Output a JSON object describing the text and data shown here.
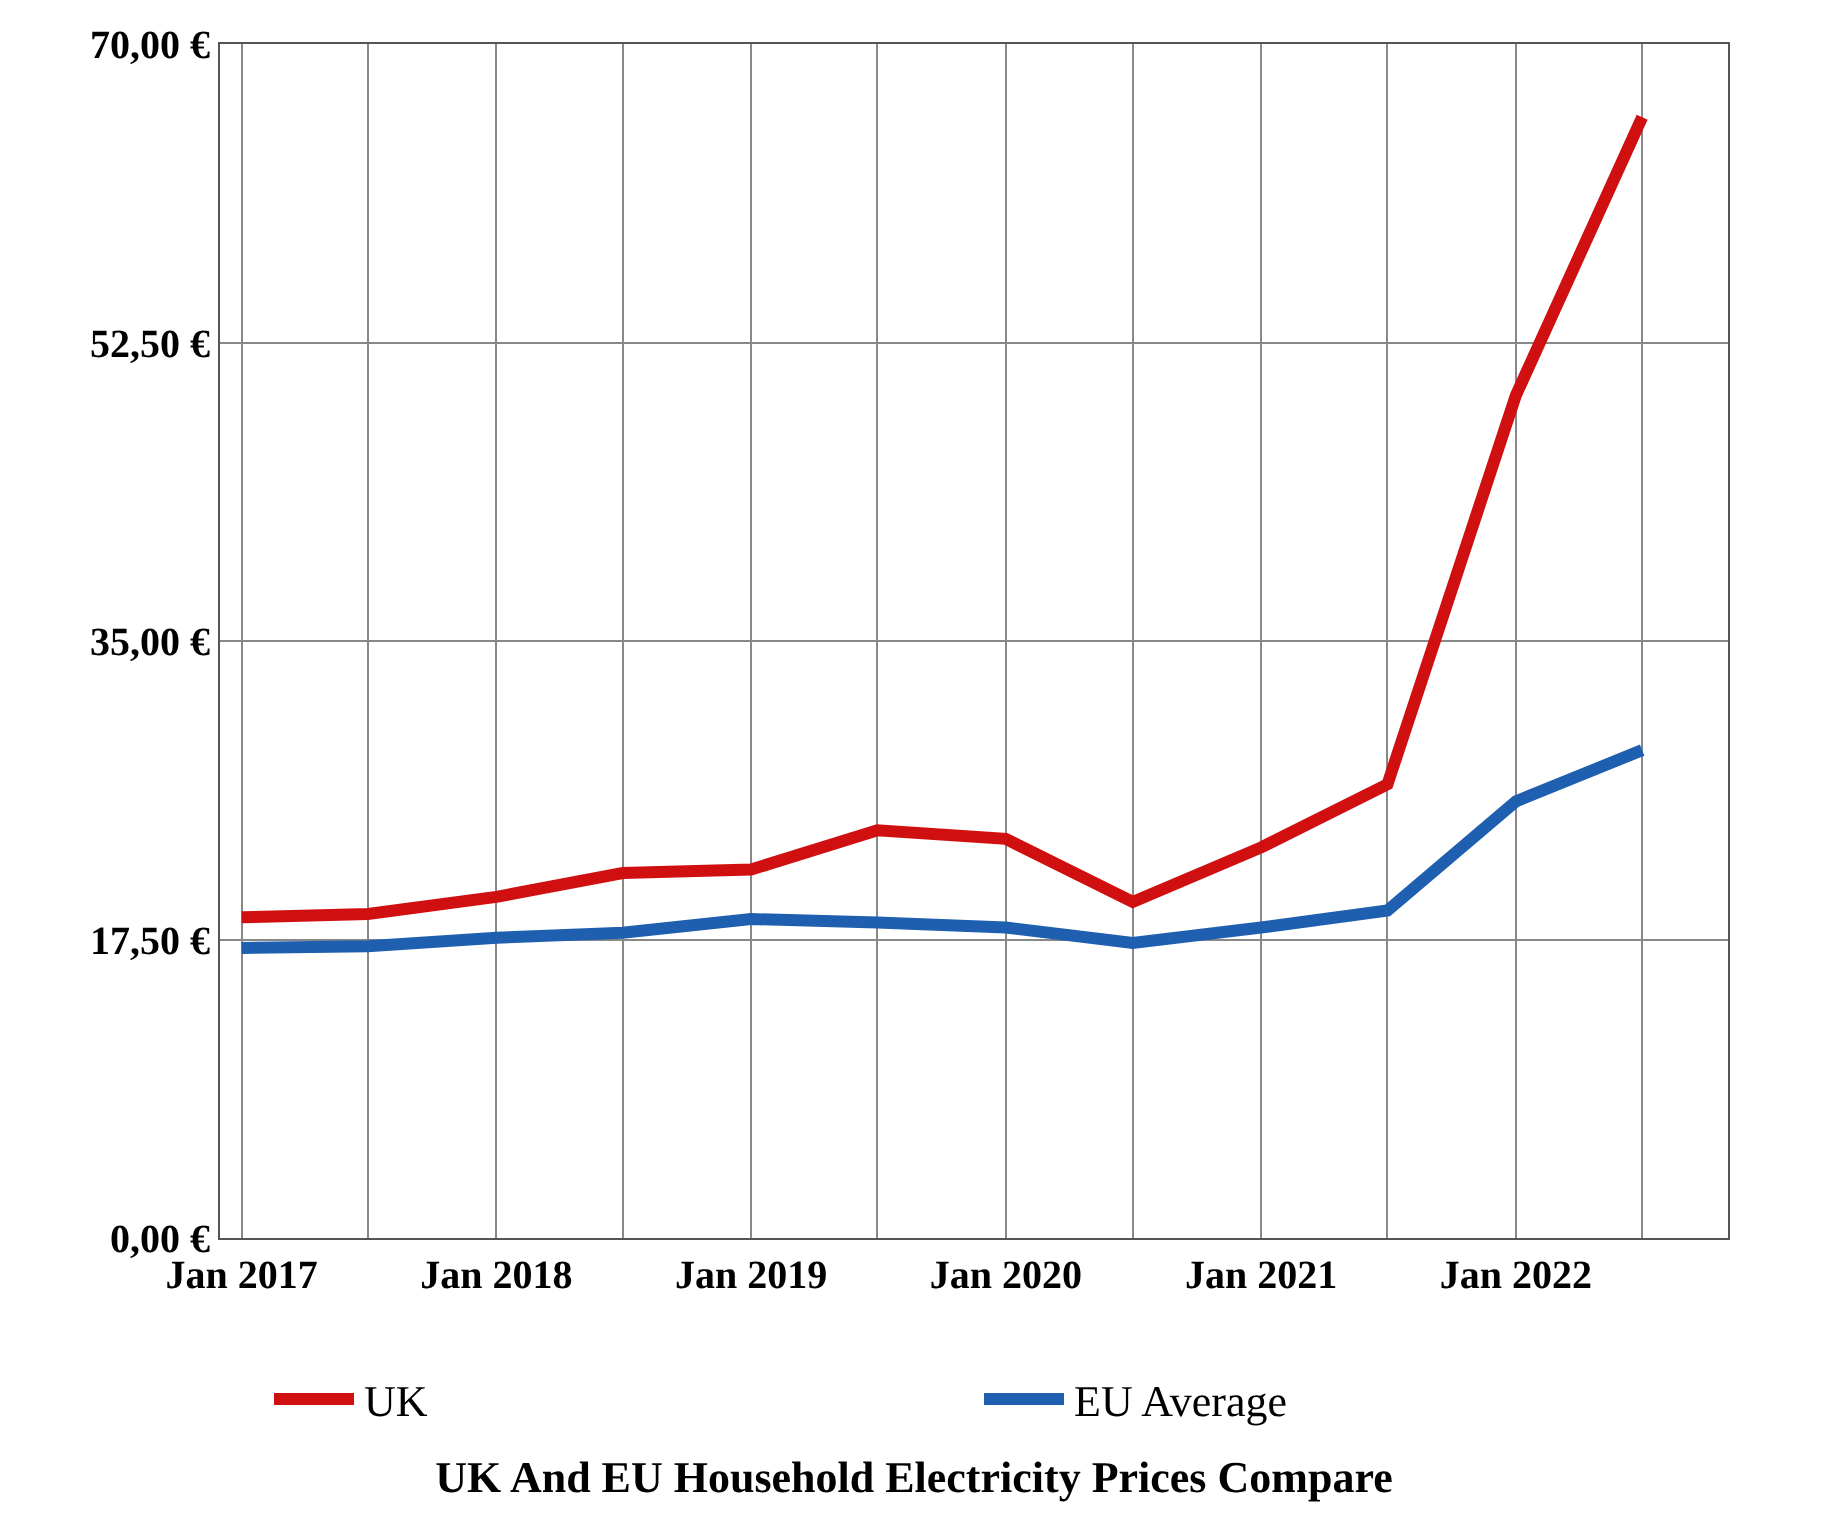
{
  "chart_data": {
    "type": "line",
    "title": "UK And EU Household Electricity Prices Compare",
    "x": [
      "2017-01",
      "2017-07",
      "2018-01",
      "2018-07",
      "2019-01",
      "2019-07",
      "2020-01",
      "2020-07",
      "2021-01",
      "2021-07",
      "2022-01",
      "2022-07"
    ],
    "series": [
      {
        "name": "UK",
        "color": "#d01010",
        "values": [
          18.8,
          19.0,
          20.0,
          21.4,
          21.6,
          23.9,
          23.4,
          19.7,
          22.9,
          26.6,
          49.4,
          65.7
        ]
      },
      {
        "name": "EU Average",
        "color": "#1f5fb0",
        "values": [
          17.0,
          17.1,
          17.6,
          17.9,
          18.7,
          18.5,
          18.2,
          17.3,
          18.2,
          19.2,
          25.6,
          28.6
        ]
      }
    ],
    "xlim": [
      "2016-12-01",
      "2022-11-01"
    ],
    "xticks": [
      {
        "value": "2017-01",
        "label": "Jan 2017"
      },
      {
        "value": "2017-07",
        "label": null
      },
      {
        "value": "2018-01",
        "label": "Jan 2018"
      },
      {
        "value": "2018-07",
        "label": null
      },
      {
        "value": "2019-01",
        "label": "Jan 2019"
      },
      {
        "value": "2019-07",
        "label": null
      },
      {
        "value": "2020-01",
        "label": "Jan 2020"
      },
      {
        "value": "2020-07",
        "label": null
      },
      {
        "value": "2021-01",
        "label": "Jan 2021"
      },
      {
        "value": "2021-07",
        "label": null
      },
      {
        "value": "2022-01",
        "label": "Jan 2022"
      },
      {
        "value": "2022-07",
        "label": null
      }
    ],
    "ylim": [
      0,
      70
    ],
    "yticks": [
      {
        "value": 0,
        "label": "0,00 €"
      },
      {
        "value": 17.5,
        "label": "17,50 €"
      },
      {
        "value": 35,
        "label": "35,00 €"
      },
      {
        "value": 52.5,
        "label": "52,50 €"
      },
      {
        "value": 70,
        "label": "70,00 €"
      }
    ],
    "grid": true,
    "legend": "bottom",
    "marker": "none",
    "line_style": "solid"
  }
}
